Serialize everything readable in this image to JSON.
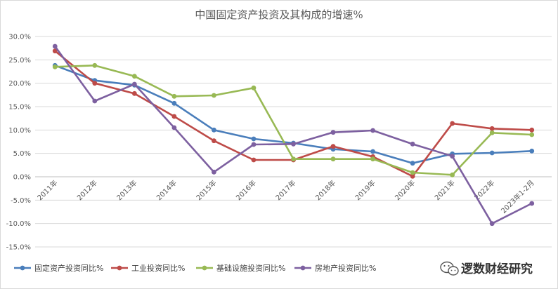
{
  "chart_data": {
    "type": "line",
    "title": "中国固定资产投资及其构成的增速%",
    "xlabel": "",
    "ylabel": "",
    "categories": [
      "2011年",
      "2012年",
      "2013年",
      "2014年",
      "2015年",
      "2016年",
      "2017年",
      "2018年",
      "2019年",
      "2020年",
      "2021年",
      "2022年",
      "2023年1-2月"
    ],
    "y_ticks": [
      "30.0%",
      "25.0%",
      "20.0%",
      "15.0%",
      "10.0%",
      "5.0%",
      "0.0%",
      "-5.0%",
      "-10.0%",
      "-15.0%"
    ],
    "ylim": [
      -15,
      30
    ],
    "grid": true,
    "legend_position": "bottom",
    "series": [
      {
        "name": "固定资产投资同比%",
        "color": "#4a7ebb",
        "values": [
          23.8,
          20.6,
          19.6,
          15.7,
          10.0,
          8.1,
          7.2,
          5.9,
          5.4,
          2.9,
          4.9,
          5.1,
          5.5
        ]
      },
      {
        "name": "工业投资同比%",
        "color": "#be4b48",
        "values": [
          26.9,
          20.0,
          17.8,
          12.9,
          7.7,
          3.6,
          3.6,
          6.5,
          4.3,
          0.1,
          11.4,
          10.3,
          10.0
        ]
      },
      {
        "name": "基础设施投资同比%",
        "color": "#98b954",
        "values": [
          23.5,
          23.8,
          21.5,
          17.2,
          17.4,
          19.0,
          3.8,
          3.8,
          3.8,
          0.9,
          0.4,
          9.4,
          9.0
        ]
      },
      {
        "name": "房地产投资同比%",
        "color": "#7d60a0",
        "values": [
          27.9,
          16.2,
          19.8,
          10.5,
          1.0,
          6.9,
          7.0,
          9.5,
          9.9,
          7.0,
          4.4,
          -10.0,
          -5.7
        ]
      }
    ]
  },
  "watermark": {
    "text": "逻数财经研究",
    "icon": "wechat-icon"
  }
}
